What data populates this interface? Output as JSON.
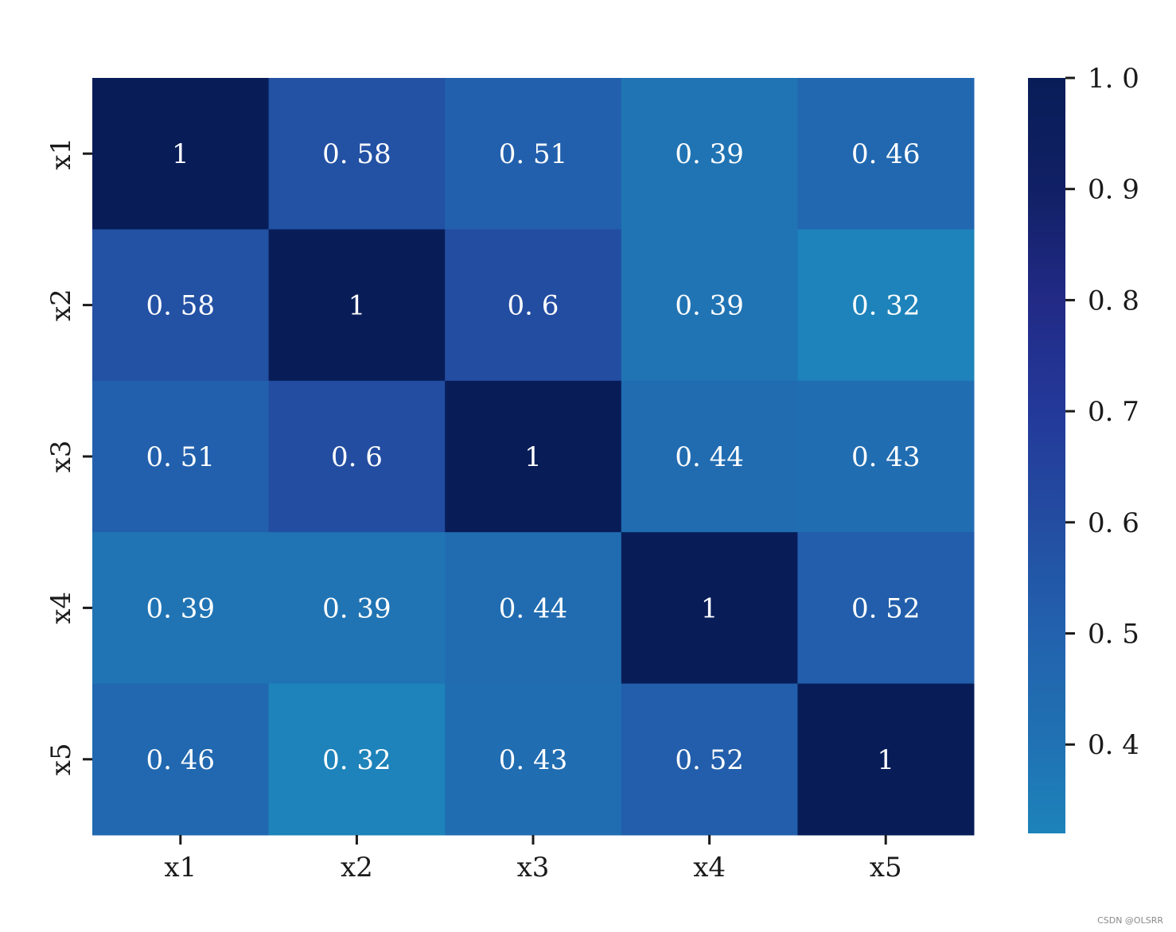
{
  "chart_data": {
    "type": "heatmap",
    "x_categories": [
      "x1",
      "x2",
      "x3",
      "x4",
      "x5"
    ],
    "y_categories": [
      "x1",
      "x2",
      "x3",
      "x4",
      "x5"
    ],
    "values": [
      [
        1,
        0.58,
        0.51,
        0.39,
        0.46
      ],
      [
        0.58,
        1,
        0.6,
        0.39,
        0.32
      ],
      [
        0.51,
        0.6,
        1,
        0.44,
        0.43
      ],
      [
        0.39,
        0.39,
        0.44,
        1,
        0.52
      ],
      [
        0.46,
        0.32,
        0.43,
        0.52,
        1
      ]
    ],
    "annotations": [
      [
        "1",
        "0. 58",
        "0. 51",
        "0. 39",
        "0. 46"
      ],
      [
        "0. 58",
        "1",
        "0. 6",
        "0. 39",
        "0. 32"
      ],
      [
        "0. 51",
        "0. 6",
        "1",
        "0. 44",
        "0. 43"
      ],
      [
        "0. 39",
        "0. 39",
        "0. 44",
        "1",
        "0. 52"
      ],
      [
        "0. 46",
        "0. 32",
        "0. 43",
        "0. 52",
        "1"
      ]
    ],
    "colorbar": {
      "range": [
        0.32,
        1.0
      ],
      "ticks": [
        1.0,
        0.9,
        0.8,
        0.7,
        0.6,
        0.5,
        0.4
      ],
      "tick_labels": [
        "1. 0",
        "0. 9",
        "0. 8",
        "0. 7",
        "0. 6",
        "0. 5",
        "0. 4"
      ],
      "colormap": "YlGnBu",
      "color_stops": [
        {
          "value": 0.32,
          "color": "#1d83ba"
        },
        {
          "value": 0.4,
          "color": "#2072b3"
        },
        {
          "value": 0.5,
          "color": "#2262ae"
        },
        {
          "value": 0.6,
          "color": "#234da1"
        },
        {
          "value": 0.7,
          "color": "#23399a"
        },
        {
          "value": 0.8,
          "color": "#222a86"
        },
        {
          "value": 0.9,
          "color": "#112065"
        },
        {
          "value": 1.0,
          "color": "#081d58"
        }
      ]
    },
    "title": "",
    "xlabel": "",
    "ylabel": "",
    "grid": false,
    "legend": "colorbar-right"
  },
  "watermark": "CSDN @OLSRR"
}
